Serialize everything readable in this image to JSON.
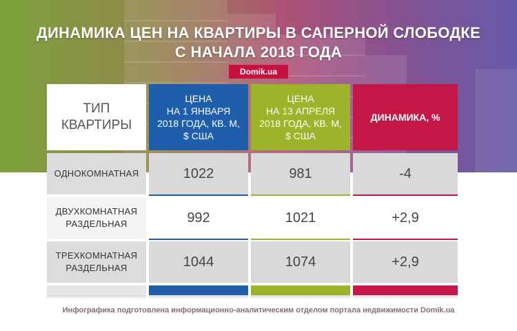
{
  "title_line1": "ДИНАМИКА ЦЕН НА КВАРТИРЫ В САПЕРНОЙ СЛОБОДКЕ",
  "title_line2": "С НАЧАЛА 2018 ГОДА",
  "brand": "Domik.ua",
  "columns": [
    {
      "label_lines": [
        "ТИП",
        "КВАРТИРЫ"
      ]
    },
    {
      "label_lines": [
        "ЦЕНА",
        "НА 1 ЯНВАРЯ",
        "2018 ГОДА, КВ. М,",
        "$ США"
      ]
    },
    {
      "label_lines": [
        "ЦЕНА",
        "НА 13 АПРЕЛЯ",
        "2018 ГОДА, КВ. М,",
        "$ США"
      ]
    },
    {
      "label_lines": [
        "ДИНАМИКА, %"
      ]
    }
  ],
  "rows": [
    {
      "type_lines": [
        "ОДНОКОМНАТНАЯ"
      ],
      "price_jan": "1022",
      "price_apr": "981",
      "change": "-4"
    },
    {
      "type_lines": [
        "ДВУХКОМНАТНАЯ",
        "РАЗДЕЛЬНАЯ"
      ],
      "price_jan": "992",
      "price_apr": "1021",
      "change": "+2,9"
    },
    {
      "type_lines": [
        "ТРЕХКОМНАТНАЯ",
        "РАЗДЕЛЬНАЯ"
      ],
      "price_jan": "1044",
      "price_apr": "1074",
      "change": "+2,9"
    }
  ],
  "footer": "Инфографика подготовлена информационно-аналитическим отделом портала недвижимости Domik.ua",
  "colors": {
    "jan": "#1f5eab",
    "apr": "#9bb42a",
    "change": "#c41747",
    "brand": "#c8113f"
  }
}
